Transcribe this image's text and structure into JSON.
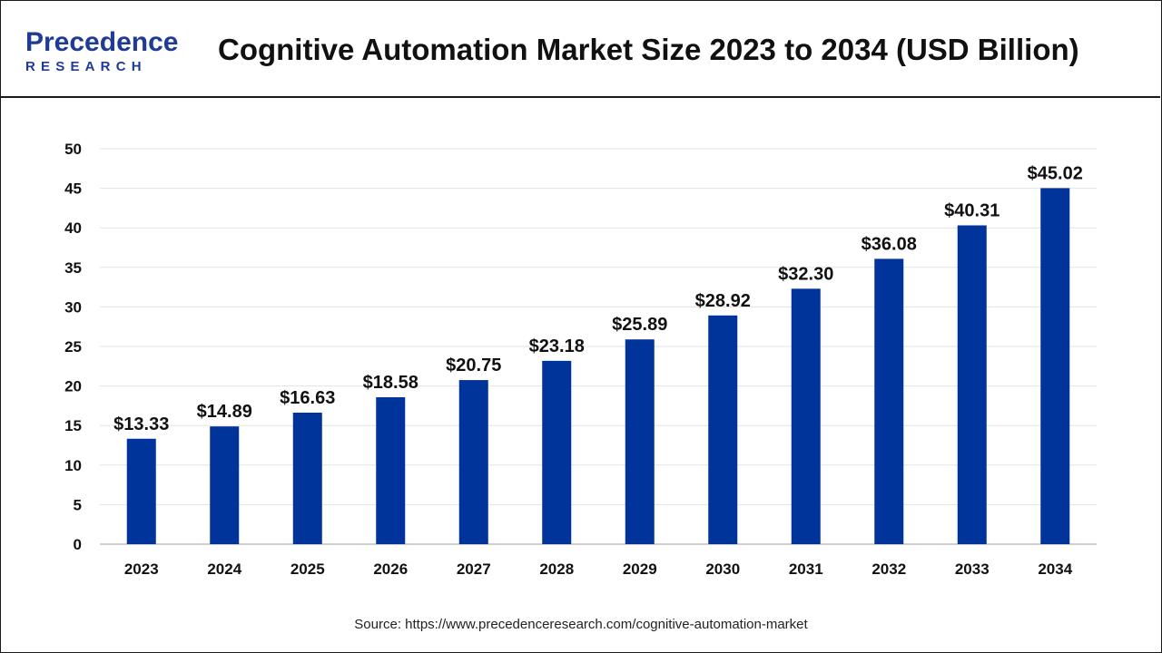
{
  "header": {
    "title": "Cognitive Automation Market Size 2023 to 2034 (USD Billion)",
    "logo_text_top": "Precedence",
    "logo_text_bottom": "RESEARCH"
  },
  "source": "Source: https://www.precedenceresearch.com/cognitive-automation-market",
  "colors": {
    "bar": "#00349A",
    "logo_blue": "#1f3b93"
  },
  "chart_data": {
    "type": "bar",
    "title": "Cognitive Automation Market Size 2023 to 2034 (USD Billion)",
    "xlabel": "",
    "ylabel": "",
    "categories": [
      "2023",
      "2024",
      "2025",
      "2026",
      "2027",
      "2028",
      "2029",
      "2030",
      "2031",
      "2032",
      "2033",
      "2034"
    ],
    "values": [
      13.33,
      14.89,
      16.63,
      18.58,
      20.75,
      23.18,
      25.89,
      28.92,
      32.3,
      36.08,
      40.31,
      45.02
    ],
    "value_labels": [
      "$13.33",
      "$14.89",
      "$16.63",
      "$18.58",
      "$20.75",
      "$23.18",
      "$25.89",
      "$28.92",
      "$32.30",
      "$36.08",
      "$40.31",
      "$45.02"
    ],
    "ylim": [
      0,
      50
    ],
    "yticks": [
      0,
      5,
      10,
      15,
      20,
      25,
      30,
      35,
      40,
      45,
      50
    ],
    "grid": true,
    "legend": "none"
  }
}
